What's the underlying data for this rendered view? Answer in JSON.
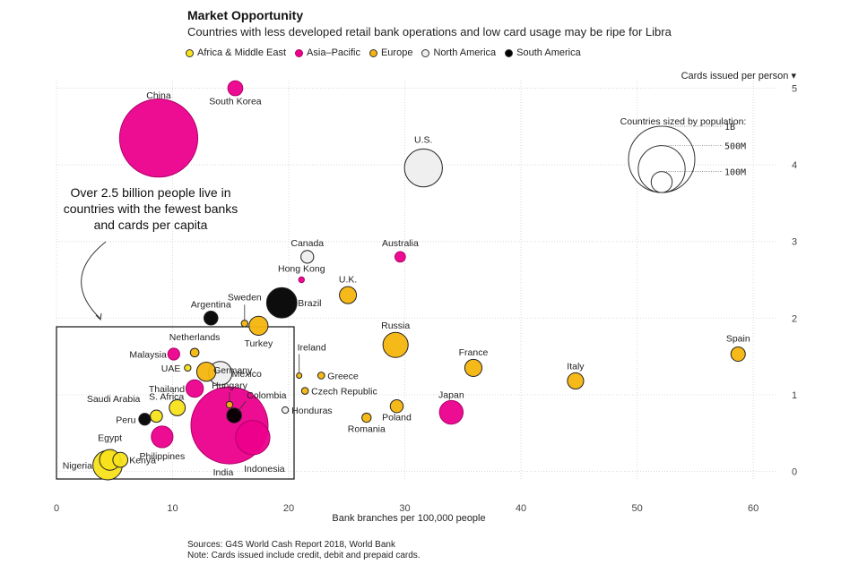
{
  "header": {
    "title": "Market Opportunity",
    "subtitle": "Countries with less developed retail bank operations and low card usage may be ripe for Libra"
  },
  "legend": [
    {
      "label": "Africa & Middle East",
      "color": "#f7e21b"
    },
    {
      "label": "Asia–Pacific",
      "color": "#ec008c"
    },
    {
      "label": "Europe",
      "color": "#f5b50e"
    },
    {
      "label": "North America",
      "color": "#eeeeee"
    },
    {
      "label": "South America",
      "color": "#000000"
    }
  ],
  "size_legend": {
    "title": "Countries sized by population:",
    "entries": [
      {
        "label": "1B",
        "population_m": 1000
      },
      {
        "label": "500M",
        "population_m": 500
      },
      {
        "label": "100M",
        "population_m": 100
      }
    ]
  },
  "annotation": "Over 2.5 billion people live in countries with the fewest banks and cards per capita",
  "sources": {
    "line1": "Sources: G4S World Cash Report 2018, World Bank",
    "line2": "Note: Cards issued include credit, debit and prepaid cards."
  },
  "chart_data": {
    "type": "scatter",
    "title": "Market Opportunity",
    "subtitle": "Countries with less developed retail bank operations and low card usage may be ripe for Libra",
    "xlabel": "Bank branches per 100,000 people",
    "ylabel": "Cards issued per person ▾",
    "xlim": [
      0,
      62
    ],
    "ylim": [
      -0.1,
      5.1
    ],
    "xticks": [
      0,
      10,
      20,
      30,
      40,
      50,
      60
    ],
    "yticks": [
      0,
      1,
      2,
      3,
      4,
      5
    ],
    "grid": true,
    "region_colors": {
      "Africa & Middle East": "#f7e21b",
      "Asia–Pacific": "#ec008c",
      "Europe": "#f5b50e",
      "North America": "#eeeeee",
      "South America": "#000000"
    },
    "points": [
      {
        "name": "China",
        "x": 8.8,
        "y": 4.35,
        "population_m": 1390,
        "region": "Asia–Pacific"
      },
      {
        "name": "South Korea",
        "x": 15.4,
        "y": 5.0,
        "population_m": 51,
        "region": "Asia–Pacific"
      },
      {
        "name": "U.S.",
        "x": 31.6,
        "y": 3.96,
        "population_m": 327,
        "region": "North America"
      },
      {
        "name": "Canada",
        "x": 21.6,
        "y": 2.8,
        "population_m": 37,
        "region": "North America"
      },
      {
        "name": "Australia",
        "x": 29.6,
        "y": 2.8,
        "population_m": 25,
        "region": "Asia–Pacific"
      },
      {
        "name": "Hong Kong",
        "x": 21.1,
        "y": 2.5,
        "population_m": 7.5,
        "region": "Asia–Pacific"
      },
      {
        "name": "Brazil",
        "x": 19.4,
        "y": 2.2,
        "population_m": 209,
        "region": "South America"
      },
      {
        "name": "U.K.",
        "x": 25.1,
        "y": 2.3,
        "population_m": 66,
        "region": "Europe"
      },
      {
        "name": "Argentina",
        "x": 13.3,
        "y": 2.0,
        "population_m": 44,
        "region": "South America"
      },
      {
        "name": "Sweden",
        "x": 16.2,
        "y": 1.93,
        "population_m": 10,
        "region": "Europe"
      },
      {
        "name": "Turkey",
        "x": 17.4,
        "y": 1.9,
        "population_m": 82,
        "region": "Europe"
      },
      {
        "name": "Netherlands",
        "x": 11.9,
        "y": 1.55,
        "population_m": 17,
        "region": "Europe"
      },
      {
        "name": "Malaysia",
        "x": 10.1,
        "y": 1.53,
        "population_m": 32,
        "region": "Asia–Pacific"
      },
      {
        "name": "Germany",
        "x": 12.9,
        "y": 1.3,
        "population_m": 83,
        "region": "Europe"
      },
      {
        "name": "UAE",
        "x": 11.3,
        "y": 1.35,
        "population_m": 9.6,
        "region": "Africa & Middle East"
      },
      {
        "name": "Mexico",
        "x": 14.1,
        "y": 1.28,
        "population_m": 126,
        "region": "North America"
      },
      {
        "name": "Thailand",
        "x": 11.9,
        "y": 1.08,
        "population_m": 69,
        "region": "Asia–Pacific"
      },
      {
        "name": "Hungary",
        "x": 14.9,
        "y": 0.87,
        "population_m": 9.8,
        "region": "Europe"
      },
      {
        "name": "Colombia",
        "x": 15.3,
        "y": 0.73,
        "population_m": 50,
        "region": "South America"
      },
      {
        "name": "S. Africa",
        "x": 10.4,
        "y": 0.83,
        "population_m": 58,
        "region": "Africa & Middle East"
      },
      {
        "name": "Saudi Arabia",
        "x": 8.6,
        "y": 0.72,
        "population_m": 34,
        "region": "Africa & Middle East"
      },
      {
        "name": "Peru",
        "x": 7.6,
        "y": 0.68,
        "population_m": 32,
        "region": "South America"
      },
      {
        "name": "India",
        "x": 14.9,
        "y": 0.6,
        "population_m": 1350,
        "region": "Asia–Pacific"
      },
      {
        "name": "Indonesia",
        "x": 16.9,
        "y": 0.44,
        "population_m": 268,
        "region": "Asia–Pacific"
      },
      {
        "name": "Philippines",
        "x": 9.1,
        "y": 0.45,
        "population_m": 107,
        "region": "Asia–Pacific"
      },
      {
        "name": "Egypt",
        "x": 4.6,
        "y": 0.15,
        "population_m": 98,
        "region": "Africa & Middle East"
      },
      {
        "name": "Kenya",
        "x": 5.5,
        "y": 0.15,
        "population_m": 51,
        "region": "Africa & Middle East"
      },
      {
        "name": "Nigeria",
        "x": 4.4,
        "y": 0.08,
        "population_m": 196,
        "region": "Africa & Middle East"
      },
      {
        "name": "Ireland",
        "x": 20.9,
        "y": 1.25,
        "population_m": 4.9,
        "region": "Europe"
      },
      {
        "name": "Greece",
        "x": 22.8,
        "y": 1.25,
        "population_m": 10.7,
        "region": "Europe"
      },
      {
        "name": "Czech Republic",
        "x": 21.4,
        "y": 1.05,
        "population_m": 10.6,
        "region": "Europe"
      },
      {
        "name": "Honduras",
        "x": 19.7,
        "y": 0.8,
        "population_m": 9.6,
        "region": "North America"
      },
      {
        "name": "Russia",
        "x": 29.2,
        "y": 1.65,
        "population_m": 144,
        "region": "Europe"
      },
      {
        "name": "France",
        "x": 35.9,
        "y": 1.35,
        "population_m": 67,
        "region": "Europe"
      },
      {
        "name": "Italy",
        "x": 44.7,
        "y": 1.18,
        "population_m": 60,
        "region": "Europe"
      },
      {
        "name": "Spain",
        "x": 58.7,
        "y": 1.53,
        "population_m": 47,
        "region": "Europe"
      },
      {
        "name": "Japan",
        "x": 34.0,
        "y": 0.77,
        "population_m": 127,
        "region": "Asia–Pacific"
      },
      {
        "name": "Poland",
        "x": 29.3,
        "y": 0.85,
        "population_m": 38,
        "region": "Europe"
      },
      {
        "name": "Romania",
        "x": 26.7,
        "y": 0.7,
        "population_m": 19.5,
        "region": "Europe"
      }
    ]
  }
}
